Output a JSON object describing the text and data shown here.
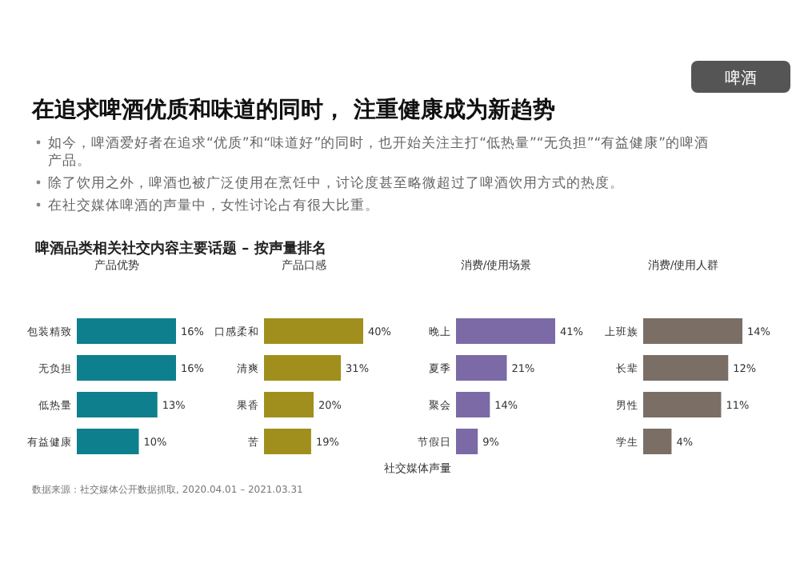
{
  "chart_data": [
    {
      "type": "other",
      "title": "在追求啤酒优质和味道的同时， 注重健康成为新趋势",
      "annotations": [
        "啤酒",
        "如今，啤酒爱好者在追求“优质”和“味道好”的同时，也开始关注主打“低热量”“无负担”“有益健康”的啤酒产品。",
        "除了饮用之外，啤酒也被广泛使用在烹饪中，讨论度甚至略微超过了啤酒饮用方式的热度。",
        "在社交媒体啤酒的声量中，女性讨论占有很大比重。",
        "啤酒品类相关社交内容主要话题 – 按声量排名",
        "社交媒体声量",
        "数据来源：社交媒体公开数据抓取, 2020.04.01 – 2021.03.31"
      ]
    },
    {
      "type": "bar",
      "orientation": "horizontal",
      "title": "产品优势",
      "categories": [
        null,
        "包装精致",
        "无负担",
        "低热量",
        "有益健康"
      ],
      "series": [
        {
          "color": "#0e7f8c",
          "values": [
            null,
            16,
            16,
            13,
            10
          ],
          "value_labels": [
            null,
            "16%",
            "16%",
            "13%",
            "10%"
          ]
        }
      ]
    },
    {
      "type": "bar",
      "orientation": "horizontal",
      "title": "产品口感",
      "categories": [
        null,
        "口感柔和",
        "清爽",
        "果香",
        "苦"
      ],
      "series": [
        {
          "color": "#a08f1c",
          "values": [
            null,
            40,
            31,
            20,
            19
          ],
          "value_labels": [
            null,
            "40%",
            "31%",
            "20%",
            "19%"
          ]
        }
      ]
    },
    {
      "type": "bar",
      "orientation": "horizontal",
      "title": "消费/使用场景",
      "categories": [
        null,
        "晚上",
        "夏季",
        "聚会",
        "节假日"
      ],
      "series": [
        {
          "color": "#7b6aa6",
          "values": [
            null,
            41,
            21,
            14,
            9
          ],
          "value_labels": [
            null,
            "41%",
            "21%",
            "14%",
            "9%"
          ]
        }
      ]
    },
    {
      "type": "bar",
      "orientation": "horizontal",
      "title": "消费/使用人群",
      "categories": [
        null,
        "上班族",
        "长辈",
        "男性",
        "学生"
      ],
      "series": [
        {
          "color": "#7a6e65",
          "values": [
            null,
            14,
            12,
            11,
            4
          ],
          "value_labels": [
            null,
            "14%",
            "12%",
            "11%",
            "4%"
          ]
        }
      ]
    }
  ]
}
